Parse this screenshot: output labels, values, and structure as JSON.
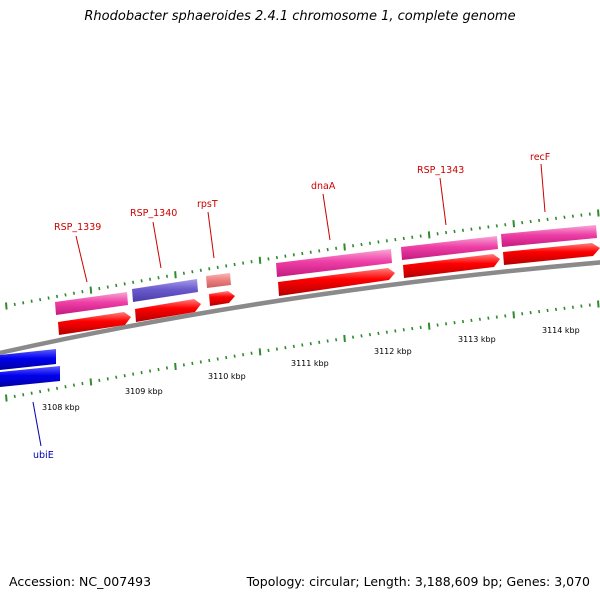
{
  "title": "Rhodobacter sphaeroides 2.4.1 chromosome 1, complete genome",
  "footer": {
    "accession": "Accession: NC_007493",
    "summary": "Topology: circular; Length: 3,188,609 bp; Genes: 3,070"
  },
  "colors": {
    "backbone": "#8a8a8a",
    "tick": "#2e8b2e",
    "cds": "#ff0000",
    "gene_pink": "#ee3fa6",
    "gene_blue": "#6a5acd",
    "gene_rna": "#f08080",
    "ubiE": "#0000ee",
    "label_red": "#cc0000",
    "label_blue": "#0000aa"
  },
  "scale": {
    "labels": [
      "3108 kbp",
      "3109 kbp",
      "3110 kbp",
      "3111 kbp",
      "3112 kbp",
      "3113 kbp",
      "3114 kbp"
    ]
  },
  "features": [
    {
      "name": "ubiE",
      "color": "ubiE"
    },
    {
      "name": "RSP_1339",
      "color": "gene_pink"
    },
    {
      "name": "RSP_1340",
      "color": "gene_blue"
    },
    {
      "name": "rpsT",
      "color": "gene_rna"
    },
    {
      "name": "dnaA",
      "color": "gene_pink"
    },
    {
      "name": "RSP_1343",
      "color": "gene_pink"
    },
    {
      "name": "recF",
      "color": "gene_pink"
    }
  ]
}
